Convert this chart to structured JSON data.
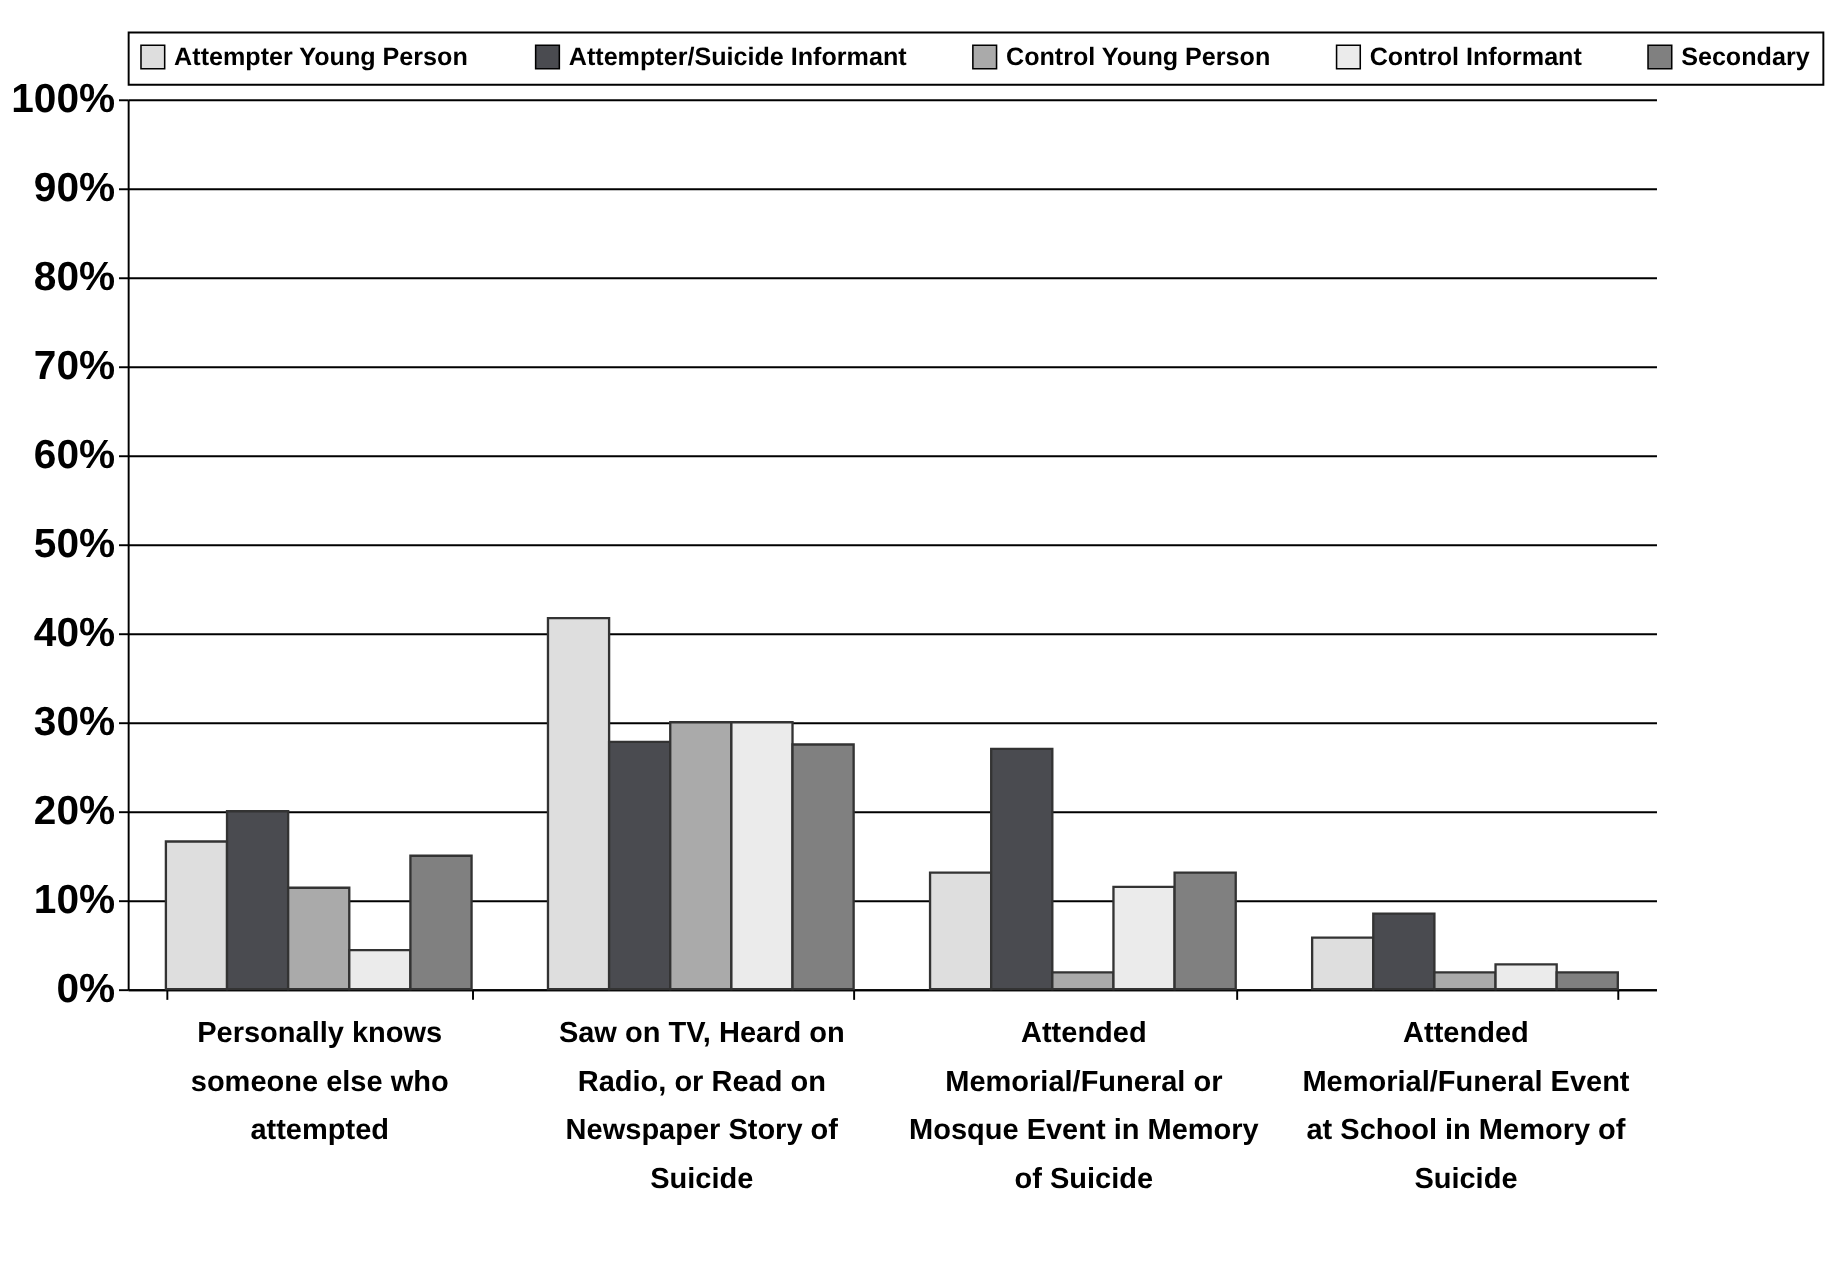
{
  "chart_data": {
    "type": "bar",
    "categories": [
      "Personally knows someone else who attempted",
      "Saw on TV, Heard on Radio, or Read on Newspaper Story of Suicide",
      "Attended Memorial/Funeral or Mosque Event in Memory of Suicide",
      "Attended Memorial/Funeral Event at School in Memory of Suicide"
    ],
    "series": [
      {
        "name": "Attempter Young Person",
        "color": "#dedede",
        "values": [
          16.6,
          41.7,
          13.1,
          5.8
        ]
      },
      {
        "name": "Attempter/Suicide Informant",
        "color": "#4a4b50",
        "values": [
          20,
          27.8,
          27,
          8.5
        ]
      },
      {
        "name": "Control Young Person",
        "color": "#aaaaaa",
        "values": [
          11.4,
          30,
          1.9,
          1.9
        ]
      },
      {
        "name": "Control Informant",
        "color": "#ebebeb",
        "values": [
          4.4,
          30,
          11.5,
          2.8
        ]
      },
      {
        "name": "Secondary",
        "color": "#808080",
        "values": [
          15,
          27.5,
          13.1,
          1.9
        ]
      }
    ],
    "ylim": [
      0,
      100
    ],
    "yticks": [
      {
        "value": 0,
        "label": "0%"
      },
      {
        "value": 10,
        "label": "10%"
      },
      {
        "value": 20,
        "label": "20%"
      },
      {
        "value": 30,
        "label": "30%"
      },
      {
        "value": 40,
        "label": "40%"
      },
      {
        "value": 50,
        "label": "50%"
      },
      {
        "value": 60,
        "label": "60%"
      },
      {
        "value": 70,
        "label": "70%"
      },
      {
        "value": 80,
        "label": "80%"
      },
      {
        "value": 90,
        "label": "90%"
      },
      {
        "value": 100,
        "label": "100%"
      }
    ],
    "grid": "y",
    "legend": "top"
  }
}
